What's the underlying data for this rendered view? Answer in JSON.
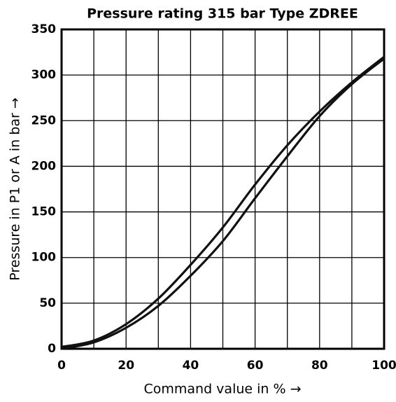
{
  "chart_data": {
    "type": "line",
    "title": "Pressure rating 315 bar Type ZDREE",
    "x_label": "Command value in % →",
    "y_label": "Pressure in P1 or A in bar →",
    "x": [
      0,
      10,
      20,
      30,
      40,
      50,
      60,
      70,
      80,
      90,
      100
    ],
    "series": [
      {
        "color": "#111111",
        "values": [
          2,
          9,
          27,
          55,
          92,
          133,
          180,
          223,
          260,
          292,
          320
        ]
      },
      {
        "color": "#111111",
        "values": [
          0,
          7,
          23,
          47,
          80,
          118,
          165,
          211,
          255,
          290,
          318
        ]
      }
    ],
    "xlim": [
      0,
      100
    ],
    "xticks": [
      0,
      20,
      40,
      60,
      80,
      100
    ],
    "xminor": [
      10,
      30,
      50,
      70,
      90
    ],
    "ylim": [
      0,
      350
    ],
    "yticks": [
      0,
      50,
      100,
      150,
      200,
      250,
      300,
      350
    ],
    "grid": true
  }
}
